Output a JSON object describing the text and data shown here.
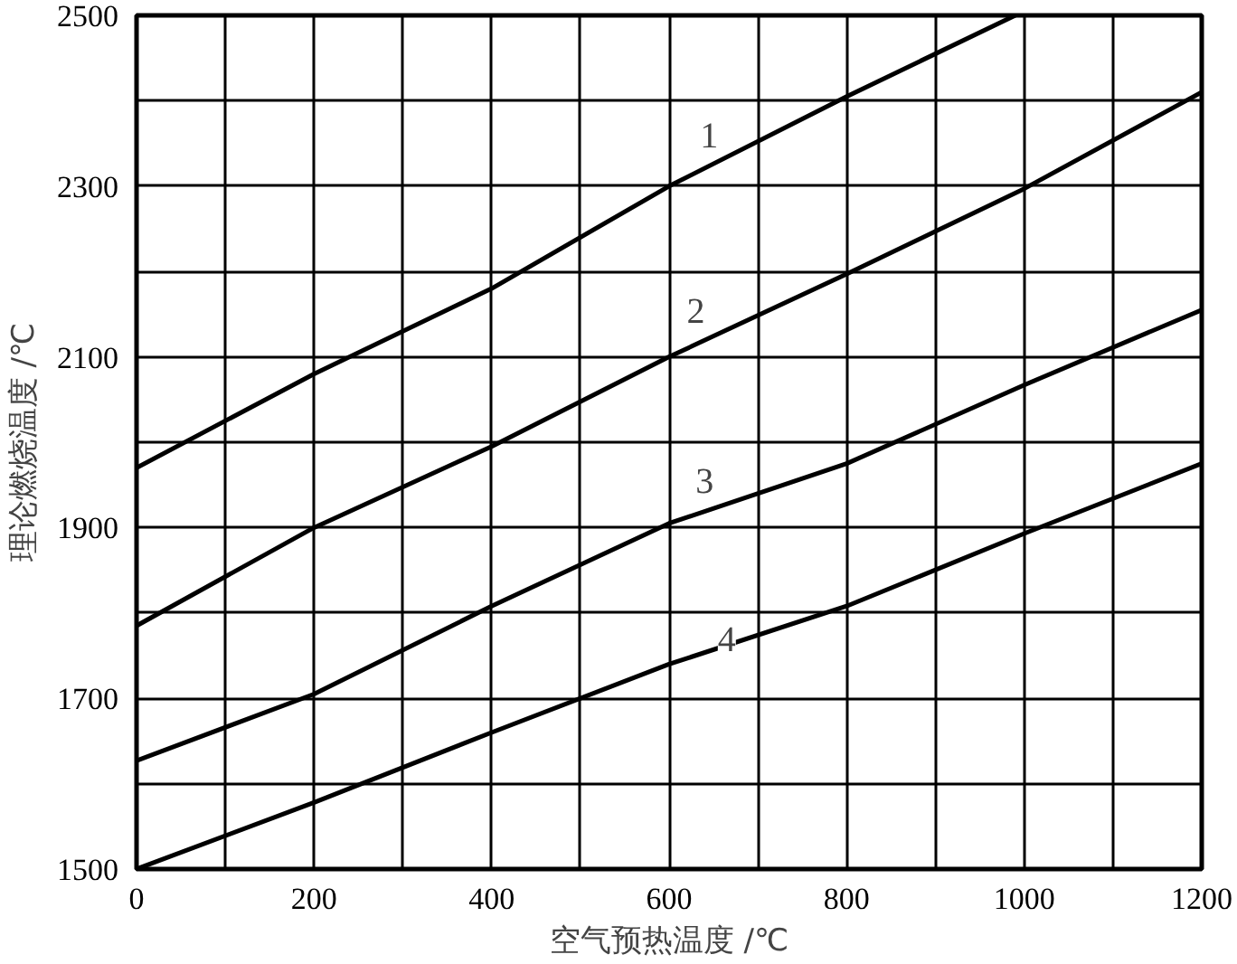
{
  "chart_data": {
    "type": "line",
    "xlabel": "空气预热温度 /℃",
    "ylabel": "理论燃烧温度 /℃",
    "xlim": [
      0,
      1200
    ],
    "ylim": [
      1500,
      2500
    ],
    "xticks": [
      0,
      {
        "value": 100,
        "label": null
      },
      200,
      {
        "value": 300,
        "label": null
      },
      400,
      {
        "value": 500,
        "label": null
      },
      600,
      {
        "value": 700,
        "label": null
      },
      800,
      {
        "value": 900,
        "label": null
      },
      1000,
      {
        "value": 1100,
        "label": null
      },
      1200
    ],
    "yticks": [
      1500,
      {
        "value": 1600,
        "label": null
      },
      1700,
      {
        "value": 1800,
        "label": null
      },
      1900,
      {
        "value": 2000,
        "label": null
      },
      2100,
      {
        "value": 2200,
        "label": null
      },
      2300,
      {
        "value": 2400,
        "label": null
      },
      2500
    ],
    "grid": true,
    "marker": "none",
    "line_style": "solid",
    "series": [
      {
        "color": "#000000",
        "x": [
          0,
          200,
          400,
          600,
          800,
          990
        ],
        "values": [
          1970,
          2080,
          2180,
          2300,
          2405,
          2500
        ]
      },
      {
        "color": "#000000",
        "x": [
          0,
          200,
          400,
          600,
          800,
          1000,
          1200
        ],
        "values": [
          1785,
          1900,
          1995,
          2100,
          2197,
          2297,
          2410
        ]
      },
      {
        "color": "#000000",
        "x": [
          0,
          200,
          400,
          600,
          800,
          1000,
          1200
        ],
        "values": [
          1627,
          1705,
          1808,
          1905,
          1975,
          2067,
          2155
        ]
      },
      {
        "color": "#000000",
        "x": [
          0,
          200,
          400,
          600,
          800,
          1000,
          1200
        ],
        "values": [
          1500,
          1578,
          1660,
          1740,
          1808,
          1893,
          1975
        ]
      }
    ],
    "annotations": [
      {
        "text": "1",
        "x": 645,
        "y": 2360
      },
      {
        "text": "2",
        "x": 630,
        "y": 2155
      },
      {
        "text": "3",
        "x": 640,
        "y": 1955
      },
      {
        "text": "4",
        "x": 665,
        "y": 1770
      }
    ]
  }
}
